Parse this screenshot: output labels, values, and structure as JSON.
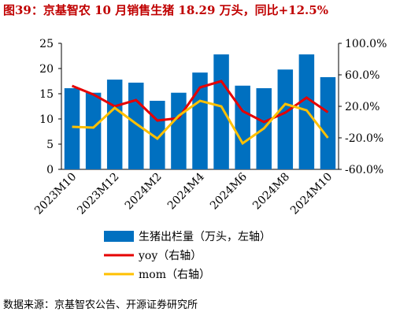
{
  "chart_data": {
    "type": "bar_line",
    "title": "图39：京基智农 10 月销售生猪 18.29 万头，同比+12.5%",
    "source": "数据来源：京基智农公告、开源证券研究所",
    "categories": [
      "2023M10",
      null,
      "2023M12",
      null,
      "2024M2",
      null,
      "2024M4",
      null,
      "2024M6",
      null,
      "2024M8",
      null,
      "2024M10"
    ],
    "series": [
      {
        "name": "生猪出栏量（万头，左轴）",
        "color": "#0070c0",
        "type": "bar",
        "values": [
          16.1,
          15.2,
          17.8,
          17.2,
          13.6,
          15.2,
          19.2,
          22.8,
          16.6,
          16.1,
          19.8,
          22.8,
          18.29
        ]
      },
      {
        "name": "yoy（右轴）",
        "color": "#e60000",
        "type": "line",
        "axis": "y2",
        "values": [
          46,
          35,
          20,
          28,
          2,
          5,
          44,
          52,
          14,
          0,
          12,
          31,
          12.5
        ]
      },
      {
        "name": "mom（右轴）",
        "color": "#ffc000",
        "type": "line",
        "axis": "y2",
        "values": [
          -6,
          -7,
          18,
          -2,
          -21,
          8,
          27,
          20,
          -27,
          -8,
          23,
          15,
          -20
        ]
      }
    ],
    "ylim": [
      0,
      25
    ],
    "yticks": [
      0,
      5,
      10,
      15,
      20,
      25
    ],
    "y2lim": [
      -60,
      100
    ],
    "y2ticks": [
      {
        "value": -60,
        "label": "-60.0%"
      },
      {
        "value": -20,
        "label": "-20.0%"
      },
      {
        "value": 20,
        "label": "20.0%"
      },
      {
        "value": 60,
        "label": "60.0%"
      },
      {
        "value": 100,
        "label": "100.0%"
      }
    ]
  }
}
